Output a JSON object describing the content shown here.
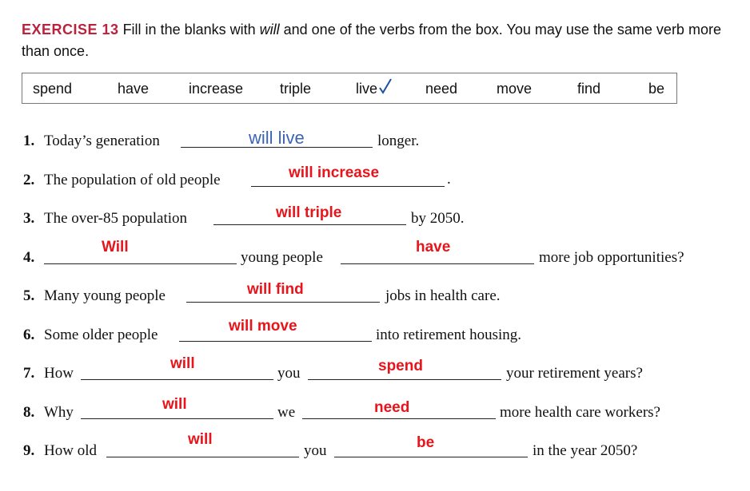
{
  "header": {
    "label": "EXERCISE 13",
    "instruction_pre": " Fill in the blanks with ",
    "instruction_italic": "will",
    "instruction_post": " and one of the verbs from the box. You may use the same verb more than once."
  },
  "word_box": [
    "spend",
    "have",
    "increase",
    "triple",
    "live",
    "need",
    "move",
    "find",
    "be"
  ],
  "items": [
    {
      "num": "1.",
      "parts": [
        "Today’s generation",
        "longer."
      ],
      "answers": [
        "will live"
      ]
    },
    {
      "num": "2.",
      "parts": [
        "The population of old people",
        "."
      ],
      "answers": [
        "will increase"
      ]
    },
    {
      "num": "3.",
      "parts": [
        "The over-85 population",
        "by 2050."
      ],
      "answers": [
        "will triple"
      ]
    },
    {
      "num": "4.",
      "parts": [
        "",
        "young people",
        "more job opportunities?"
      ],
      "answers": [
        "Will",
        "have"
      ]
    },
    {
      "num": "5.",
      "parts": [
        "Many young people",
        "jobs in health care."
      ],
      "answers": [
        "will find"
      ]
    },
    {
      "num": "6.",
      "parts": [
        "Some older people",
        "into retirement housing."
      ],
      "answers": [
        "will move"
      ]
    },
    {
      "num": "7.",
      "parts": [
        "How",
        "you",
        "your retirement years?"
      ],
      "answers": [
        "will",
        "spend"
      ]
    },
    {
      "num": "8.",
      "parts": [
        "Why",
        "we",
        "more health care workers?"
      ],
      "answers": [
        "will",
        "need"
      ]
    },
    {
      "num": "9.",
      "parts": [
        "How old",
        "you",
        "in the year 2050?"
      ],
      "answers": [
        "will",
        "be"
      ]
    }
  ],
  "colors": {
    "exercise_label": "#b8233d",
    "answer_red": "#e8141b",
    "answer_blue": "#3c64b4",
    "check": "#1f4fa0"
  },
  "icons": {
    "live_mark": "checkmark-icon"
  }
}
